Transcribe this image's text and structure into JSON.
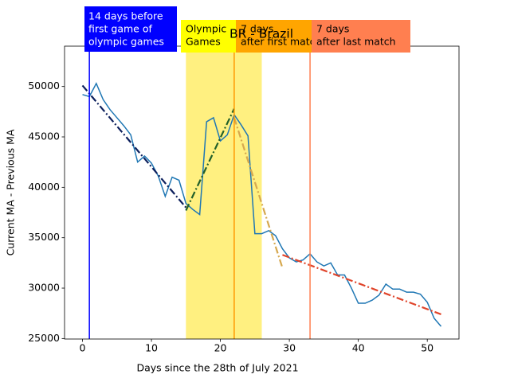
{
  "chart_data": {
    "type": "line",
    "title": "BR - Brazil",
    "x_label": "Days since the 28th of July 2021",
    "y_label": "Current MA - Previous MA",
    "x": [
      0,
      1,
      2,
      3,
      4,
      5,
      6,
      7,
      8,
      9,
      10,
      11,
      12,
      13,
      14,
      15,
      16,
      17,
      18,
      19,
      20,
      21,
      22,
      23,
      24,
      25,
      26,
      27,
      28,
      29,
      30,
      31,
      32,
      33,
      34,
      35,
      36,
      37,
      38,
      39,
      40,
      41,
      42,
      43,
      44,
      45,
      46,
      47,
      48,
      49,
      50,
      51,
      52
    ],
    "series": [
      {
        "color": "#1f77b4",
        "values": [
          49200,
          49000,
          50300,
          48700,
          47700,
          46900,
          46100,
          45200,
          42500,
          43100,
          42400,
          41100,
          39100,
          41000,
          40700,
          38400,
          37800,
          37300,
          46500,
          46900,
          44600,
          45200,
          47200,
          46200,
          45100,
          35400,
          35400,
          35700,
          35200,
          33900,
          33000,
          32600,
          32800,
          33400,
          32600,
          32200,
          32500,
          31300,
          31300,
          30000,
          28500,
          28500,
          28800,
          29300,
          30400,
          29900,
          29900,
          29600,
          29600,
          29400,
          28600,
          27000,
          26200
        ]
      }
    ],
    "trend_lines": [
      {
        "color": "#0c1f5c",
        "x": [
          0,
          15
        ],
        "values": [
          50100,
          38000
        ]
      },
      {
        "color": "#22602a",
        "x": [
          15,
          22
        ],
        "values": [
          37700,
          47800
        ]
      },
      {
        "color": "#d6a84e",
        "x": [
          22,
          29
        ],
        "values": [
          46900,
          32000
        ]
      },
      {
        "color": "#e0442a",
        "x": [
          29,
          52
        ],
        "values": [
          33300,
          27400
        ]
      }
    ],
    "span": {
      "x": [
        15,
        26
      ],
      "color": "#fff080"
    },
    "vlines": [
      {
        "x": 1,
        "color": "#0000ff"
      },
      {
        "x": 22,
        "color": "#ff9900"
      },
      {
        "x": 33,
        "color": "#ff7f50"
      }
    ],
    "annotations": [
      {
        "lines": [
          "14 days before",
          "first game of",
          "olympic games"
        ],
        "color": "#0000ff",
        "text_color": "#ffffff"
      },
      {
        "lines": [
          "Olympic",
          "Games"
        ],
        "color": "#ffff00",
        "text_color": "#000000"
      },
      {
        "lines": [
          "7 days",
          "after first match"
        ],
        "color": "#ffa500",
        "text_color": "#000000"
      },
      {
        "lines": [
          "7 days",
          "after last match"
        ],
        "color": "#ff7f50",
        "text_color": "#000000"
      }
    ],
    "xlim": [
      -2.6,
      54.6
    ],
    "ylim": [
      24950,
      54000
    ],
    "xticks": [
      0,
      10,
      20,
      30,
      40,
      50
    ],
    "yticks": [
      25000,
      30000,
      35000,
      40000,
      45000,
      50000
    ]
  }
}
